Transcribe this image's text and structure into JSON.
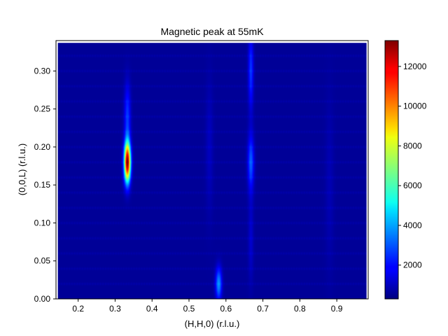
{
  "chart_data": {
    "type": "heatmap",
    "title": "Magnetic peak at 55mK",
    "xlabel": "(H,H,0) (r.l.u.)",
    "ylabel": "(0,0,L) (r.l.u.)",
    "xlim": [
      0.14,
      0.985
    ],
    "ylim": [
      0.0,
      0.34
    ],
    "data_xlim": [
      0.145,
      0.98
    ],
    "data_ylim": [
      0.0,
      0.337
    ],
    "x_ticks": [
      0.2,
      0.3,
      0.4,
      0.5,
      0.6,
      0.7,
      0.8,
      0.9
    ],
    "x_tick_labels": [
      "0.2",
      "0.3",
      "0.4",
      "0.5",
      "0.6",
      "0.7",
      "0.8",
      "0.9"
    ],
    "y_ticks": [
      0.0,
      0.05,
      0.1,
      0.15,
      0.2,
      0.25,
      0.3
    ],
    "y_tick_labels": [
      "0.00",
      "0.05",
      "0.10",
      "0.15",
      "0.20",
      "0.25",
      "0.30"
    ],
    "colormap": "jet",
    "colorbar": {
      "vmin": 300,
      "vmax": 13300,
      "ticks": [
        2000,
        4000,
        6000,
        8000,
        10000,
        12000
      ],
      "tick_labels": [
        "2000",
        "4000",
        "6000",
        "8000",
        "10000",
        "12000"
      ]
    },
    "background_intensity": 600,
    "scan_L_values": [
      0.02,
      0.04,
      0.06,
      0.08,
      0.1,
      0.12,
      0.14,
      0.16,
      0.18,
      0.2,
      0.22,
      0.24,
      0.26,
      0.28,
      0.3,
      0.32
    ],
    "peaks": [
      {
        "h": 0.333,
        "l": 0.18,
        "amplitude": 12600,
        "width_h": 0.006,
        "width_l": 0.018
      },
      {
        "h": 0.333,
        "l": 0.24,
        "amplitude": 2000,
        "width_h": 0.006,
        "width_l": 0.03
      },
      {
        "h": 0.667,
        "l": 0.18,
        "amplitude": 2500,
        "width_h": 0.006,
        "width_l": 0.025
      },
      {
        "h": 0.667,
        "l": 0.3,
        "amplitude": 2000,
        "width_h": 0.005,
        "width_l": 0.035
      },
      {
        "h": 0.667,
        "l": 0.08,
        "amplitude": 700,
        "width_h": 0.005,
        "width_l": 0.04
      },
      {
        "h": 0.58,
        "l": 0.02,
        "amplitude": 3200,
        "width_h": 0.006,
        "width_l": 0.015
      },
      {
        "h": 0.555,
        "l": 0.2,
        "amplitude": 500,
        "width_h": 0.007,
        "width_l": 0.06
      },
      {
        "h": 0.88,
        "l": 0.15,
        "amplitude": 350,
        "width_h": 0.008,
        "width_l": 0.08
      }
    ],
    "grid": false,
    "legend": "none"
  }
}
